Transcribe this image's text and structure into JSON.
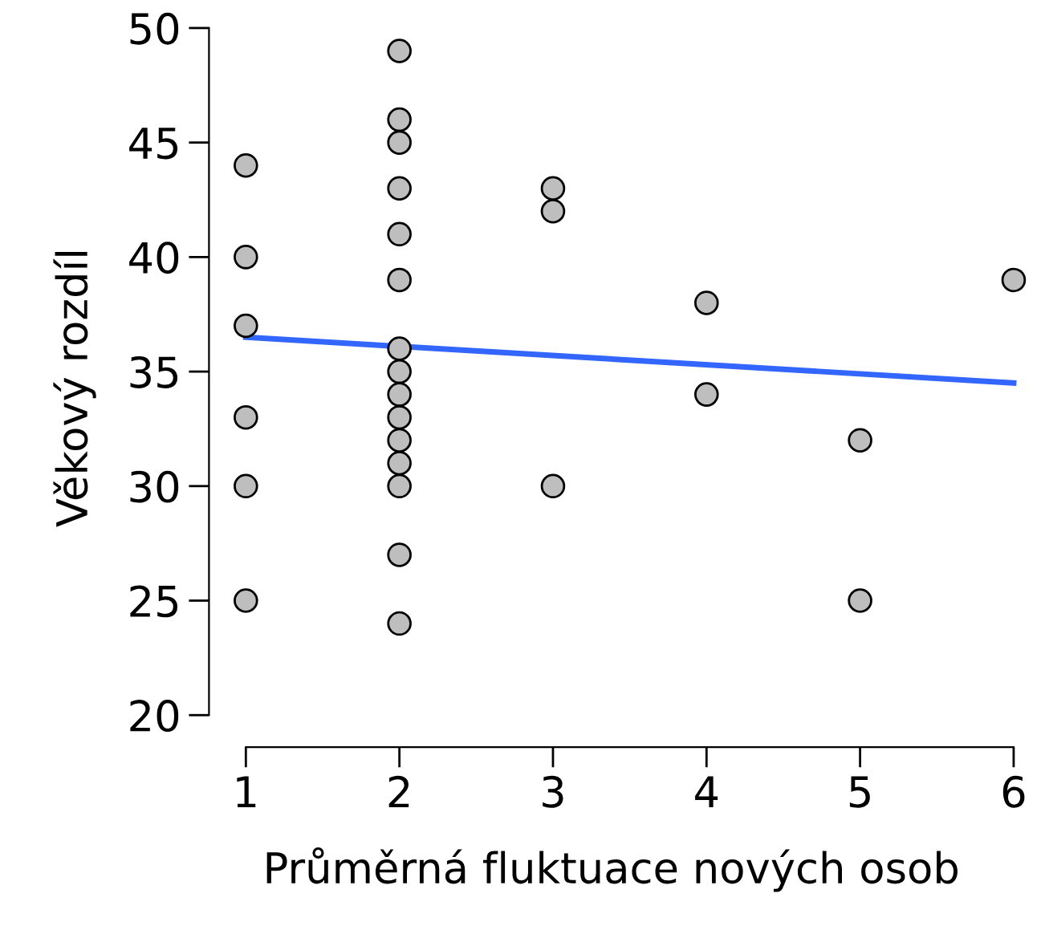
{
  "chart_data": {
    "type": "scatter",
    "xlabel": "Průměrná fluktuace nových osob",
    "ylabel": "Věkový rozdíl",
    "series": [
      {
        "color": "#bebebe",
        "marker": "circle",
        "x": [
          1,
          1,
          1,
          1,
          1,
          1,
          2,
          2,
          2,
          2,
          2,
          2,
          2,
          2,
          2,
          2,
          2,
          2,
          2,
          2,
          2,
          3,
          3,
          3,
          4,
          4,
          5,
          5,
          6
        ],
        "values": [
          44,
          40,
          37,
          33,
          30,
          25,
          49,
          46,
          45,
          43,
          41,
          39,
          36,
          35,
          34,
          33,
          32,
          31,
          30,
          27,
          24,
          43,
          42,
          30,
          38,
          34,
          32,
          25,
          39
        ]
      },
      {
        "type": "line",
        "color": "#3366ff",
        "line_style": "solid",
        "x": [
          1,
          6
        ],
        "values": [
          36.5,
          34.5
        ]
      }
    ],
    "xlim": [
      0.76,
      6
    ],
    "ylim": [
      18.6,
      50
    ],
    "xticks": [
      1,
      2,
      3,
      4,
      5,
      6
    ],
    "yticks": [
      20,
      25,
      30,
      35,
      40,
      45,
      50
    ],
    "grid": false
  }
}
